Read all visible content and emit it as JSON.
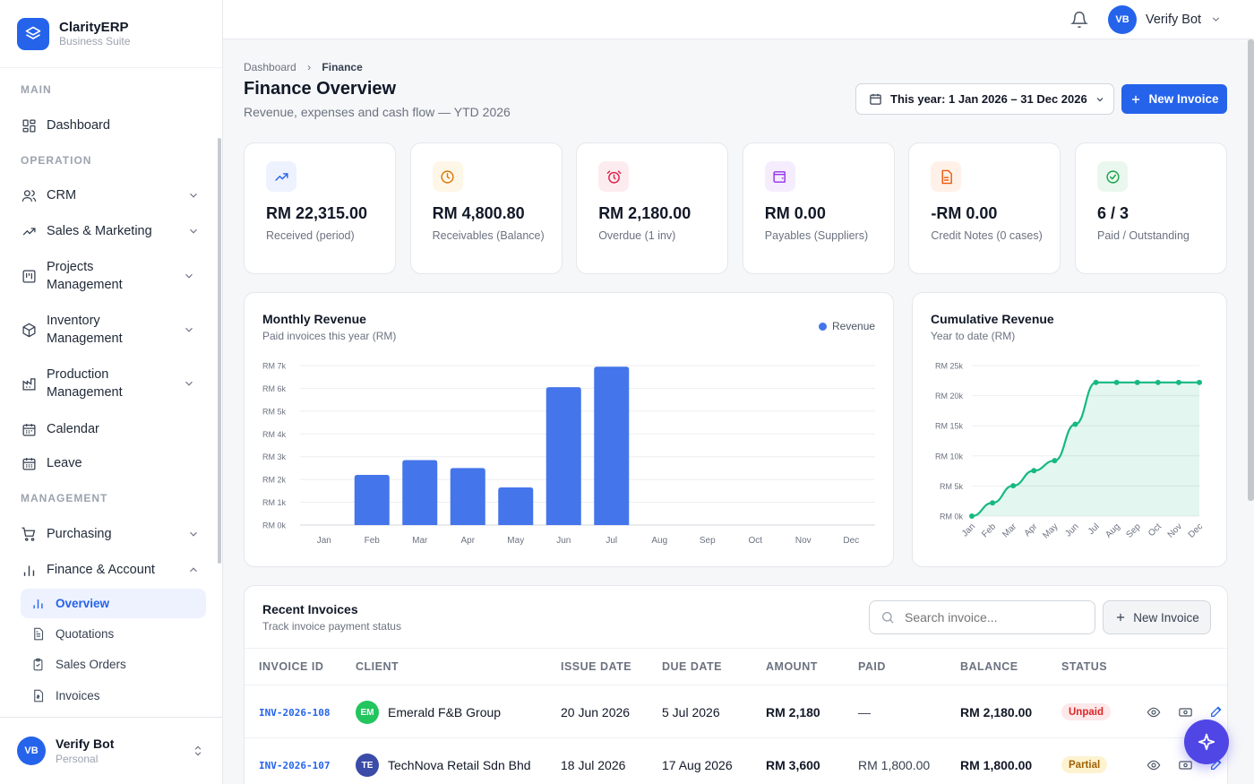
{
  "brand": {
    "name": "ClarityERP",
    "subtitle": "Business Suite"
  },
  "sidebar": {
    "sections": [
      "MAIN",
      "OPERATION",
      "MANAGEMENT"
    ],
    "items": [
      {
        "label": "Dashboard"
      },
      {
        "label": "CRM"
      },
      {
        "label": "Sales & Marketing"
      },
      {
        "label": "Projects Management"
      },
      {
        "label": "Inventory Management"
      },
      {
        "label": "Production Management"
      },
      {
        "label": "Calendar"
      },
      {
        "label": "Leave"
      },
      {
        "label": "Purchasing"
      },
      {
        "label": "Finance & Account"
      }
    ],
    "subitems": [
      {
        "label": "Overview",
        "active": true
      },
      {
        "label": "Quotations"
      },
      {
        "label": "Sales Orders"
      },
      {
        "label": "Invoices"
      }
    ],
    "user": {
      "initials": "VB",
      "name": "Verify Bot",
      "role": "Personal"
    }
  },
  "topbar": {
    "user_initials": "VB",
    "user_name": "Verify Bot"
  },
  "breadcrumb": {
    "root": "Dashboard",
    "sep": "›",
    "current": "Finance"
  },
  "page": {
    "title": "Finance Overview",
    "subtitle": "Revenue, expenses and cash flow — YTD 2026",
    "date_range": "This year: 1 Jan 2026 – 31 Dec 2026",
    "new_invoice": "New Invoice"
  },
  "kpis": [
    {
      "value": "RM 22,315.00",
      "label": "Received (period)",
      "icon": "trend-up-icon",
      "color": "#2563eb",
      "bg": "#eef2ff"
    },
    {
      "value": "RM 4,800.80",
      "label": "Receivables (Balance)",
      "icon": "clock-icon",
      "color": "#d97706",
      "bg": "#fef6e7"
    },
    {
      "value": "RM 2,180.00",
      "label": "Overdue (1 inv)",
      "icon": "alarm-icon",
      "color": "#e11d48",
      "bg": "#fdecef"
    },
    {
      "value": "RM 0.00",
      "label": "Payables (Suppliers)",
      "icon": "wallet-icon",
      "color": "#9333ea",
      "bg": "#f5edfd"
    },
    {
      "value": "-RM 0.00",
      "label": "Credit Notes (0 cases)",
      "icon": "document-icon",
      "color": "#ea580c",
      "bg": "#fff1e8"
    },
    {
      "value": "6 / 3",
      "label": "Paid / Outstanding",
      "icon": "check-circle-icon",
      "color": "#16a34a",
      "bg": "#eaf7ee"
    }
  ],
  "chart_data": [
    {
      "type": "bar",
      "title": "Monthly Revenue",
      "subtitle": "Paid invoices this year (RM)",
      "legend": "Revenue",
      "legend_position": "top-right",
      "color": "#4475ea",
      "categories": [
        "Jan",
        "Feb",
        "Mar",
        "Apr",
        "May",
        "Jun",
        "Jul",
        "Aug",
        "Sep",
        "Oct",
        "Nov",
        "Dec"
      ],
      "values": [
        0,
        2200,
        2850,
        2500,
        1650,
        6050,
        6950,
        0,
        0,
        0,
        0,
        0
      ],
      "yticks": [
        "RM 0k",
        "RM 1k",
        "RM 2k",
        "RM 3k",
        "RM 4k",
        "RM 5k",
        "RM 6k",
        "RM 7k"
      ],
      "ylim": [
        0,
        7000
      ],
      "grid": true
    },
    {
      "type": "area",
      "title": "Cumulative Revenue",
      "subtitle": "Year to date (RM)",
      "color": "#16b981",
      "categories": [
        "Jan",
        "Feb",
        "Mar",
        "Apr",
        "May",
        "Jun",
        "Jul",
        "Aug",
        "Sep",
        "Oct",
        "Nov",
        "Dec"
      ],
      "values": [
        0,
        2200,
        5050,
        7550,
        9200,
        15250,
        22200,
        22200,
        22200,
        22200,
        22200,
        22200
      ],
      "yticks": [
        "RM 0k",
        "RM 5k",
        "RM 10k",
        "RM 15k",
        "RM 20k",
        "RM 25k"
      ],
      "ylim": [
        0,
        25000
      ],
      "grid": true
    }
  ],
  "invoices": {
    "title": "Recent Invoices",
    "subtitle": "Track invoice payment status",
    "search_placeholder": "Search invoice...",
    "new_button": "New Invoice",
    "columns": [
      "INVOICE ID",
      "CLIENT",
      "ISSUE DATE",
      "DUE DATE",
      "AMOUNT",
      "PAID",
      "BALANCE",
      "STATUS"
    ],
    "rows": [
      {
        "id": "INV-2026-108",
        "initials": "EM",
        "avatar_color": "#22c55e",
        "client": "Emerald F&B Group",
        "issue": "20 Jun 2026",
        "due": "5 Jul 2026",
        "amount": "RM 2,180",
        "paid": "—",
        "balance": "RM 2,180.00",
        "status": "Unpaid",
        "status_fg": "#dc2626",
        "status_bg": "#fde8ea"
      },
      {
        "id": "INV-2026-107",
        "initials": "TE",
        "avatar_color": "#3b4ba8",
        "client": "TechNova Retail Sdn Bhd",
        "issue": "18 Jul 2026",
        "due": "17 Aug 2026",
        "amount": "RM 3,600",
        "paid": "RM 1,800.00",
        "balance": "RM 1,800.00",
        "status": "Partial",
        "status_fg": "#a16207",
        "status_bg": "#fdf3d0"
      }
    ]
  }
}
